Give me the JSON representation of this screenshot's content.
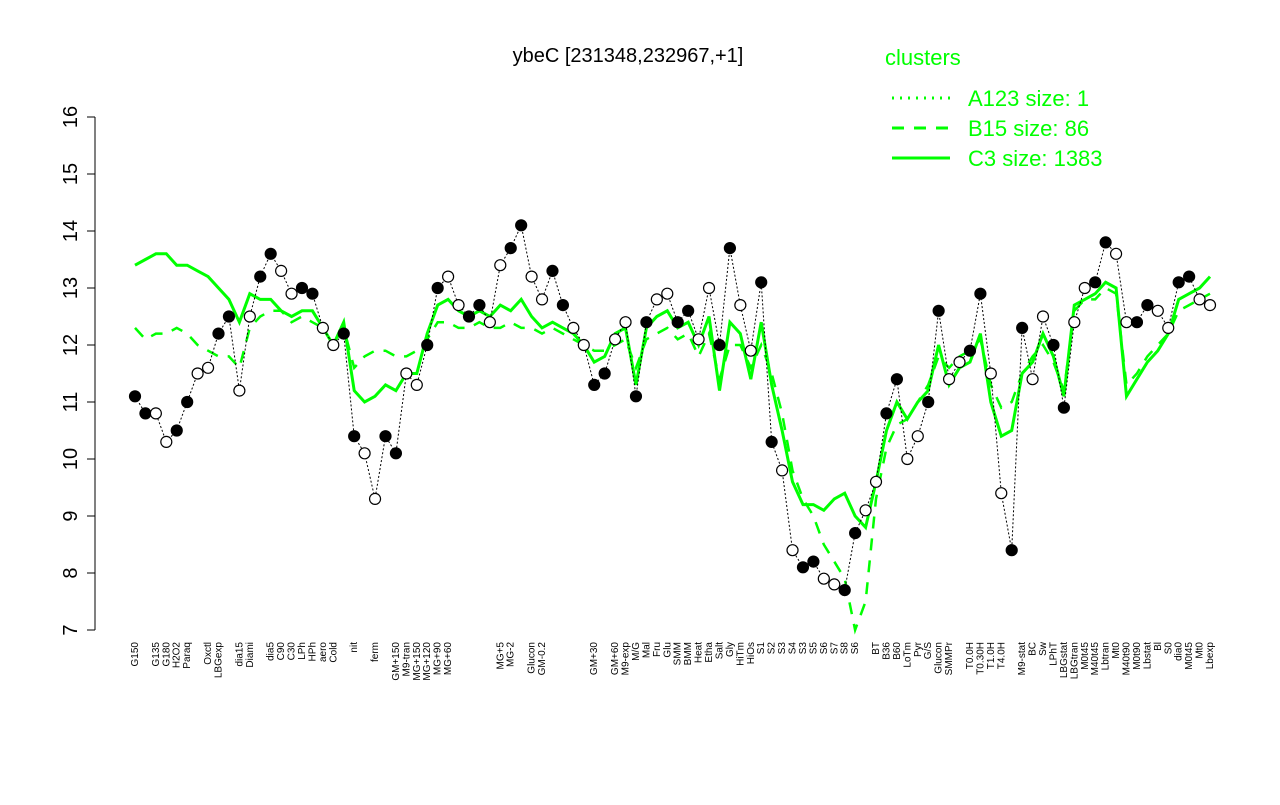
{
  "chart_data": {
    "type": "line",
    "title": "ybeC [231348,232967,+1]",
    "legend_title": "clusters",
    "legend_position": "top-right",
    "ylim": [
      7,
      16
    ],
    "yticks": [
      7,
      8,
      9,
      10,
      11,
      12,
      13,
      14,
      15,
      16
    ],
    "marker_fills": [
      "#000000",
      "#ffffff"
    ],
    "categories": [
      "G150",
      null,
      "G135",
      "G180",
      "H2O2",
      "Paraq",
      null,
      "Oxctl",
      "LBGexp",
      null,
      "dia15",
      "Diami",
      null,
      "dia5",
      "C90",
      "C30",
      "LPh",
      "HPh",
      "aero",
      "Cold",
      null,
      "nit",
      null,
      "ferm",
      null,
      "GM+150",
      "M9-tran",
      "MG+150",
      "MG+120",
      "MG+90",
      "MG+60",
      null,
      null,
      null,
      null,
      "MG+5",
      "MG-2",
      null,
      "Glucon",
      "GM-0.2",
      null,
      null,
      null,
      null,
      "GM+30",
      null,
      "GM+60",
      "M9-exp",
      "M/G",
      "Mal",
      "Fru",
      "Glu",
      "SMM",
      "BMM",
      "Heat",
      "Etha",
      "Salt",
      "Gly",
      "HiTm",
      "HiOs",
      "S1",
      "S2",
      "S3",
      "S4",
      "S3",
      "S5",
      "S6",
      "S7",
      "S8",
      "S6",
      null,
      "BT",
      "B36",
      "B60",
      "LoTm",
      "Pyr",
      "G/S",
      "Glucon",
      "SMMPr",
      null,
      "T0.0H",
      "T0.30H",
      "T1.0H",
      "T4.0H",
      null,
      "M9-stat",
      "BC",
      "Sw",
      "LPhT",
      "LBGstat",
      "LBGtran",
      "M0t45",
      "M40t45",
      "Lbtran",
      "Mt0",
      "M40t90",
      "M0t90",
      "Lbstat",
      "Bl",
      "S0",
      "dia0",
      "M0t45",
      "Mt0",
      "Lbexp"
    ],
    "series": [
      {
        "name": "A123 size: 1",
        "color": "#00ff00",
        "style": "dotted",
        "values": [
          11.1,
          10.8,
          10.8,
          10.3,
          10.5,
          11.0,
          11.5,
          11.6,
          12.2,
          12.5,
          11.2,
          12.5,
          13.2,
          13.6,
          13.3,
          12.9,
          13.0,
          12.9,
          12.3,
          12.0,
          12.2,
          10.4,
          10.1,
          9.3,
          10.4,
          10.1,
          11.5,
          11.3,
          12.0,
          13.0,
          13.2,
          12.7,
          12.5,
          12.7,
          12.4,
          13.4,
          13.7,
          14.1,
          13.2,
          12.8,
          13.3,
          12.7,
          12.3,
          12.0,
          11.3,
          11.5,
          12.1,
          12.4,
          11.1,
          12.4,
          12.8,
          12.9,
          12.4,
          12.6,
          12.1,
          13.0,
          12.0,
          13.7,
          12.7,
          11.9,
          13.1,
          10.3,
          9.8,
          8.4,
          8.1,
          8.2,
          7.9,
          7.8,
          7.7,
          8.7,
          9.1,
          9.6,
          10.8,
          11.4,
          10.0,
          10.4,
          11.0,
          12.6,
          11.4,
          11.7,
          11.9,
          12.9,
          11.5,
          9.4,
          8.4,
          12.3,
          11.4,
          12.5,
          12.0,
          10.9,
          12.4,
          13.0,
          13.1,
          13.8,
          13.6,
          12.4,
          12.4,
          12.7,
          12.6,
          12.3,
          13.1,
          13.2,
          12.8,
          12.7
        ]
      },
      {
        "name": "B15 size: 86",
        "color": "#00ff00",
        "style": "dashed",
        "values": [
          12.3,
          12.1,
          12.2,
          12.2,
          12.3,
          12.2,
          12.0,
          11.9,
          11.8,
          11.8,
          11.6,
          12.3,
          12.5,
          12.6,
          12.6,
          12.4,
          12.5,
          12.4,
          12.3,
          12.0,
          12.3,
          11.6,
          11.8,
          11.9,
          11.9,
          11.8,
          11.8,
          11.9,
          12.1,
          12.4,
          12.4,
          12.3,
          12.3,
          12.4,
          12.3,
          12.3,
          12.4,
          12.3,
          12.3,
          12.2,
          12.3,
          12.2,
          12.1,
          12.0,
          11.9,
          11.9,
          12.0,
          12.1,
          11.6,
          12.1,
          12.2,
          12.3,
          12.1,
          12.2,
          11.8,
          12.2,
          11.4,
          12.0,
          12.0,
          11.6,
          12.0,
          11.5,
          10.8,
          9.8,
          9.3,
          9.0,
          8.5,
          8.2,
          7.9,
          7.0,
          7.5,
          9.3,
          10.2,
          10.6,
          10.7,
          11.0,
          11.3,
          11.8,
          11.6,
          11.8,
          11.9,
          12.1,
          11.3,
          10.9,
          11.0,
          11.5,
          11.8,
          12.0,
          11.7,
          11.2,
          12.6,
          12.8,
          12.8,
          13.0,
          12.9,
          11.3,
          11.5,
          11.8,
          12.0,
          12.2,
          12.6,
          12.7,
          12.8,
          12.9
        ]
      },
      {
        "name": "C3 size: 1383",
        "color": "#00ff00",
        "style": "solid",
        "values": [
          13.4,
          13.5,
          13.6,
          13.6,
          13.4,
          13.4,
          13.3,
          13.2,
          13.0,
          12.8,
          12.4,
          12.9,
          12.8,
          12.8,
          12.6,
          12.5,
          12.6,
          12.6,
          12.3,
          12.0,
          12.4,
          11.2,
          11.0,
          11.1,
          11.3,
          11.2,
          11.5,
          11.5,
          12.2,
          12.7,
          12.8,
          12.6,
          12.5,
          12.6,
          12.5,
          12.7,
          12.6,
          12.8,
          12.5,
          12.3,
          12.4,
          12.3,
          12.2,
          12.0,
          11.7,
          11.8,
          12.2,
          12.3,
          11.3,
          12.3,
          12.5,
          12.6,
          12.3,
          12.4,
          12.0,
          12.5,
          11.2,
          12.4,
          12.2,
          11.4,
          12.4,
          11.3,
          10.5,
          9.6,
          9.2,
          9.2,
          9.1,
          9.3,
          9.4,
          9.0,
          8.8,
          9.6,
          10.5,
          11.0,
          10.7,
          11.0,
          11.2,
          12.0,
          11.3,
          11.6,
          11.7,
          12.2,
          11.0,
          10.4,
          10.5,
          11.5,
          11.7,
          12.2,
          11.8,
          11.1,
          12.7,
          12.8,
          12.9,
          13.1,
          13.0,
          11.1,
          11.4,
          11.7,
          11.9,
          12.2,
          12.8,
          12.9,
          13.0,
          13.2
        ]
      }
    ]
  }
}
